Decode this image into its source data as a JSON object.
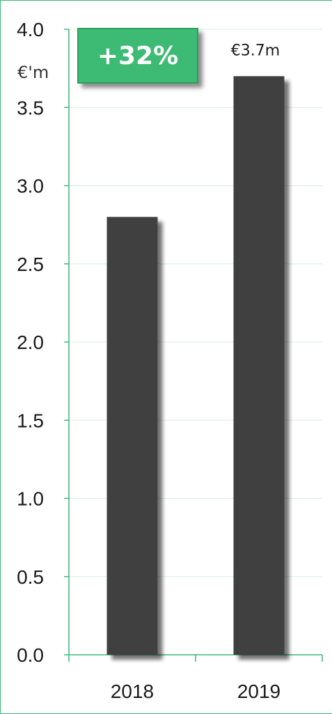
{
  "chart_data": {
    "type": "bar",
    "categories": [
      "2018",
      "2019"
    ],
    "values": [
      2.8,
      3.7
    ],
    "unit_label": "€'m",
    "ylim": [
      0,
      4.0
    ],
    "yticks": [
      "0.0",
      "0.5",
      "1.0",
      "1.5",
      "2.0",
      "2.5",
      "3.0",
      "3.5",
      "4.0"
    ],
    "data_labels": [
      "",
      "€3.7m"
    ],
    "annotation": "+32%",
    "grid": true,
    "colors": {
      "bar": "#404040",
      "axis": "#3cb878",
      "gridline": "#d6efe1",
      "badge": "#3dba74"
    }
  }
}
